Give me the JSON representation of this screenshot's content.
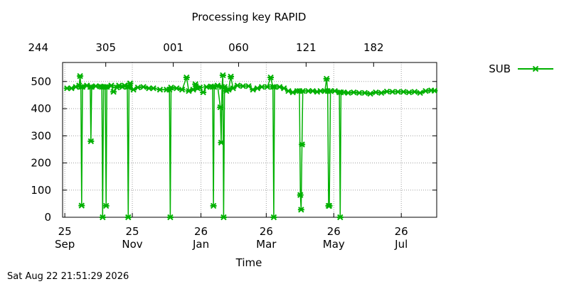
{
  "footer": {
    "timestamp": "Sat Aug 22 21:51:29 2026"
  },
  "chart_data": {
    "type": "line",
    "title": "Processing key RAPID",
    "xlabel": "Time",
    "ylabel": "",
    "x_unit": "days since Sep 1",
    "xlim": [
      22,
      360
    ],
    "ylim": [
      0,
      570
    ],
    "yticks": [
      0,
      100,
      200,
      300,
      400,
      500
    ],
    "x_ticks_bottom": [
      {
        "x": 24,
        "day": "25",
        "month": "Sep"
      },
      {
        "x": 85,
        "day": "25",
        "month": "Nov"
      },
      {
        "x": 147,
        "day": "26",
        "month": "Jan"
      },
      {
        "x": 206,
        "day": "26",
        "month": "Mar"
      },
      {
        "x": 267,
        "day": "26",
        "month": "May"
      },
      {
        "x": 328,
        "day": "26",
        "month": "Jul"
      }
    ],
    "x_ticks_top": [
      {
        "x": 0,
        "label": "244"
      },
      {
        "x": 61,
        "label": "305"
      },
      {
        "x": 122,
        "label": "001"
      },
      {
        "x": 181,
        "label": "060"
      },
      {
        "x": 242,
        "label": "121"
      },
      {
        "x": 303,
        "label": "182"
      }
    ],
    "grid": true,
    "legend_position": "top-right",
    "series": [
      {
        "name": "SUB",
        "color": "#00b000",
        "points": [
          [
            26,
            475
          ],
          [
            30,
            475
          ],
          [
            34,
            480
          ],
          [
            37,
            485
          ],
          [
            37.8,
            520
          ],
          [
            38.5,
            480
          ],
          [
            39.2,
            43
          ],
          [
            40,
            480
          ],
          [
            44,
            485
          ],
          [
            47,
            480
          ],
          [
            47.6,
            280
          ],
          [
            48.3,
            480
          ],
          [
            52,
            483
          ],
          [
            56,
            482
          ],
          [
            57.5,
            480
          ],
          [
            58.2,
            0
          ],
          [
            59,
            480
          ],
          [
            60.5,
            480
          ],
          [
            61.3,
            42
          ],
          [
            62,
            480
          ],
          [
            66,
            485
          ],
          [
            68,
            462
          ],
          [
            71,
            478
          ],
          [
            73,
            485
          ],
          [
            76,
            480
          ],
          [
            78,
            485
          ],
          [
            80.5,
            480
          ],
          [
            81.3,
            0
          ],
          [
            82,
            480
          ],
          [
            83,
            493
          ],
          [
            86,
            470
          ],
          [
            90,
            478
          ],
          [
            95,
            480
          ],
          [
            100,
            475
          ],
          [
            104,
            475
          ],
          [
            110,
            470
          ],
          [
            116,
            470
          ],
          [
            118.5,
            470
          ],
          [
            119.3,
            0
          ],
          [
            120,
            478
          ],
          [
            125,
            475
          ],
          [
            130,
            470
          ],
          [
            134,
            515
          ],
          [
            136,
            465
          ],
          [
            140,
            470
          ],
          [
            142,
            490
          ],
          [
            144,
            475
          ],
          [
            146,
            478
          ],
          [
            149,
            460
          ],
          [
            152,
            480
          ],
          [
            156,
            482
          ],
          [
            157.5,
            480
          ],
          [
            158.3,
            42
          ],
          [
            159,
            480
          ],
          [
            162,
            485
          ],
          [
            164.5,
            405
          ],
          [
            165.3,
            275
          ],
          [
            166,
            480
          ],
          [
            166.8,
            523
          ],
          [
            167.5,
            0
          ],
          [
            168.3,
            480
          ],
          [
            170,
            465
          ],
          [
            172,
            470
          ],
          [
            174,
            518
          ],
          [
            176,
            475
          ],
          [
            180,
            485
          ],
          [
            185,
            483
          ],
          [
            190,
            483
          ],
          [
            194,
            470
          ],
          [
            198,
            475
          ],
          [
            202,
            480
          ],
          [
            207,
            480
          ],
          [
            210,
            515
          ],
          [
            212,
            480
          ],
          [
            212.8,
            0
          ],
          [
            213.5,
            480
          ],
          [
            218,
            480
          ],
          [
            222,
            475
          ],
          [
            226,
            465
          ],
          [
            230,
            460
          ],
          [
            234,
            465
          ],
          [
            236,
            465
          ],
          [
            236.8,
            82
          ],
          [
            237.5,
            28
          ],
          [
            238.3,
            268
          ],
          [
            239,
            465
          ],
          [
            244,
            465
          ],
          [
            248,
            465
          ],
          [
            252,
            462
          ],
          [
            255,
            465
          ],
          [
            259,
            465
          ],
          [
            260.5,
            510
          ],
          [
            261.5,
            465
          ],
          [
            262.3,
            42
          ],
          [
            263,
            42
          ],
          [
            264,
            465
          ],
          [
            268,
            465
          ],
          [
            272,
            460
          ],
          [
            272.8,
            0
          ],
          [
            273.5,
            460
          ],
          [
            276,
            460
          ],
          [
            280,
            458
          ],
          [
            285,
            460
          ],
          [
            290,
            458
          ],
          [
            295,
            458
          ],
          [
            300,
            455
          ],
          [
            305,
            460
          ],
          [
            310,
            458
          ],
          [
            315,
            463
          ],
          [
            320,
            462
          ],
          [
            325,
            462
          ],
          [
            330,
            462
          ],
          [
            335,
            460
          ],
          [
            340,
            462
          ],
          [
            345,
            458
          ],
          [
            350,
            465
          ],
          [
            355,
            467
          ],
          [
            358,
            466
          ]
        ]
      }
    ]
  }
}
